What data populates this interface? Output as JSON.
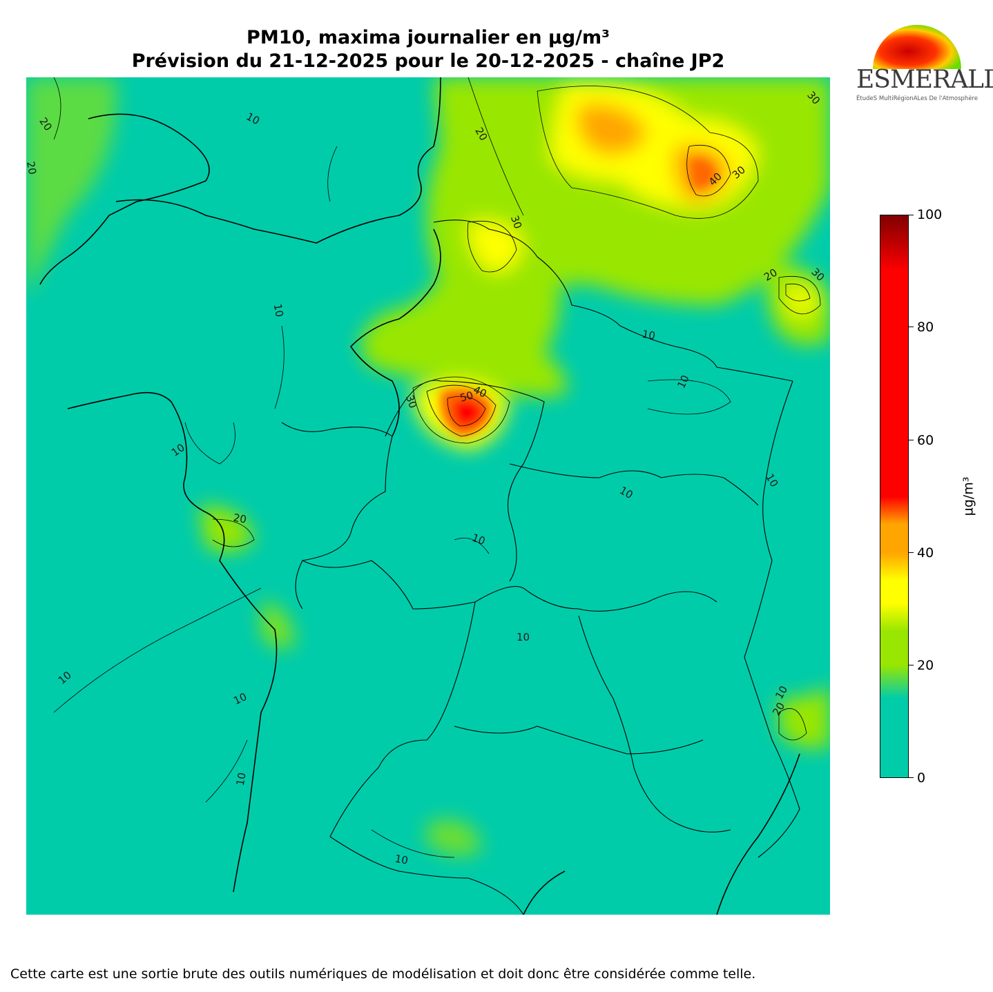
{
  "header": {
    "title_line1": "PM10, maxima journalier en µg/m³",
    "title_line2": "Prévision du 21-12-2025 pour le 20-12-2025 - chaîne JP2"
  },
  "logo": {
    "wordmark": "ESMERALDA",
    "tagline": "ÉtudeS MultiRégionALes De l'Atmosphère"
  },
  "colorbar": {
    "unit": "µg/m³",
    "ticks": [
      "0",
      "20",
      "40",
      "60",
      "80",
      "100"
    ],
    "range": [
      0,
      100
    ],
    "colors": {
      "low": "#00ccaa",
      "mid_low": "#99e600",
      "mid": "#ffff00",
      "mid_high": "#ffa500",
      "high": "#ff0000",
      "max": "#800000"
    }
  },
  "map": {
    "contour_labels": [
      "10",
      "20",
      "30",
      "40",
      "50"
    ]
  },
  "footer": {
    "disclaimer": "Cette carte est une sortie brute des outils numériques de modélisation et doit donc être considérée comme telle."
  }
}
